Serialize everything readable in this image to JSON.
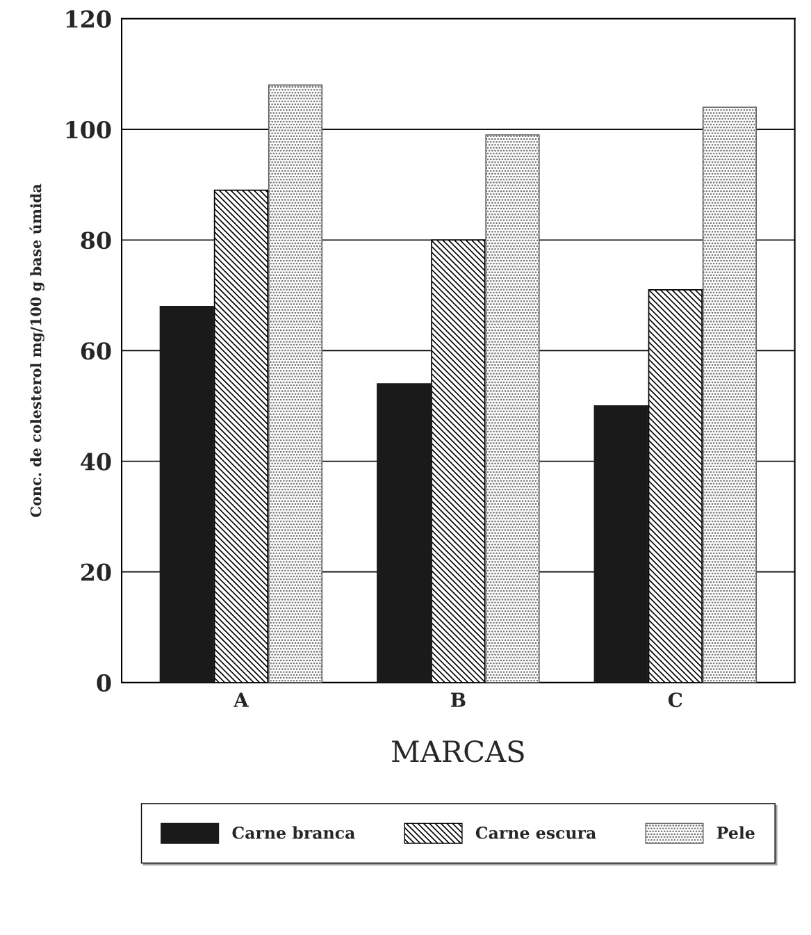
{
  "chart_data": {
    "type": "bar",
    "xlabel": "MARCAS",
    "ylabel": "Conc. de colesterol mg/100 g base úmida",
    "categories": [
      "A",
      "B",
      "C"
    ],
    "series": [
      {
        "name": "Carne branca",
        "color": "#1a1a1a",
        "values": [
          68,
          54,
          50
        ]
      },
      {
        "name": "Carne escura",
        "color": "#000000",
        "values": [
          89,
          80,
          71
        ]
      },
      {
        "name": "Pele",
        "color": "#606060",
        "values": [
          108,
          99,
          104
        ]
      }
    ],
    "ylim": [
      0,
      120
    ],
    "yticks": [
      0,
      20,
      40,
      60,
      80,
      100,
      120
    ],
    "grid": "y",
    "legend": "bottom"
  }
}
